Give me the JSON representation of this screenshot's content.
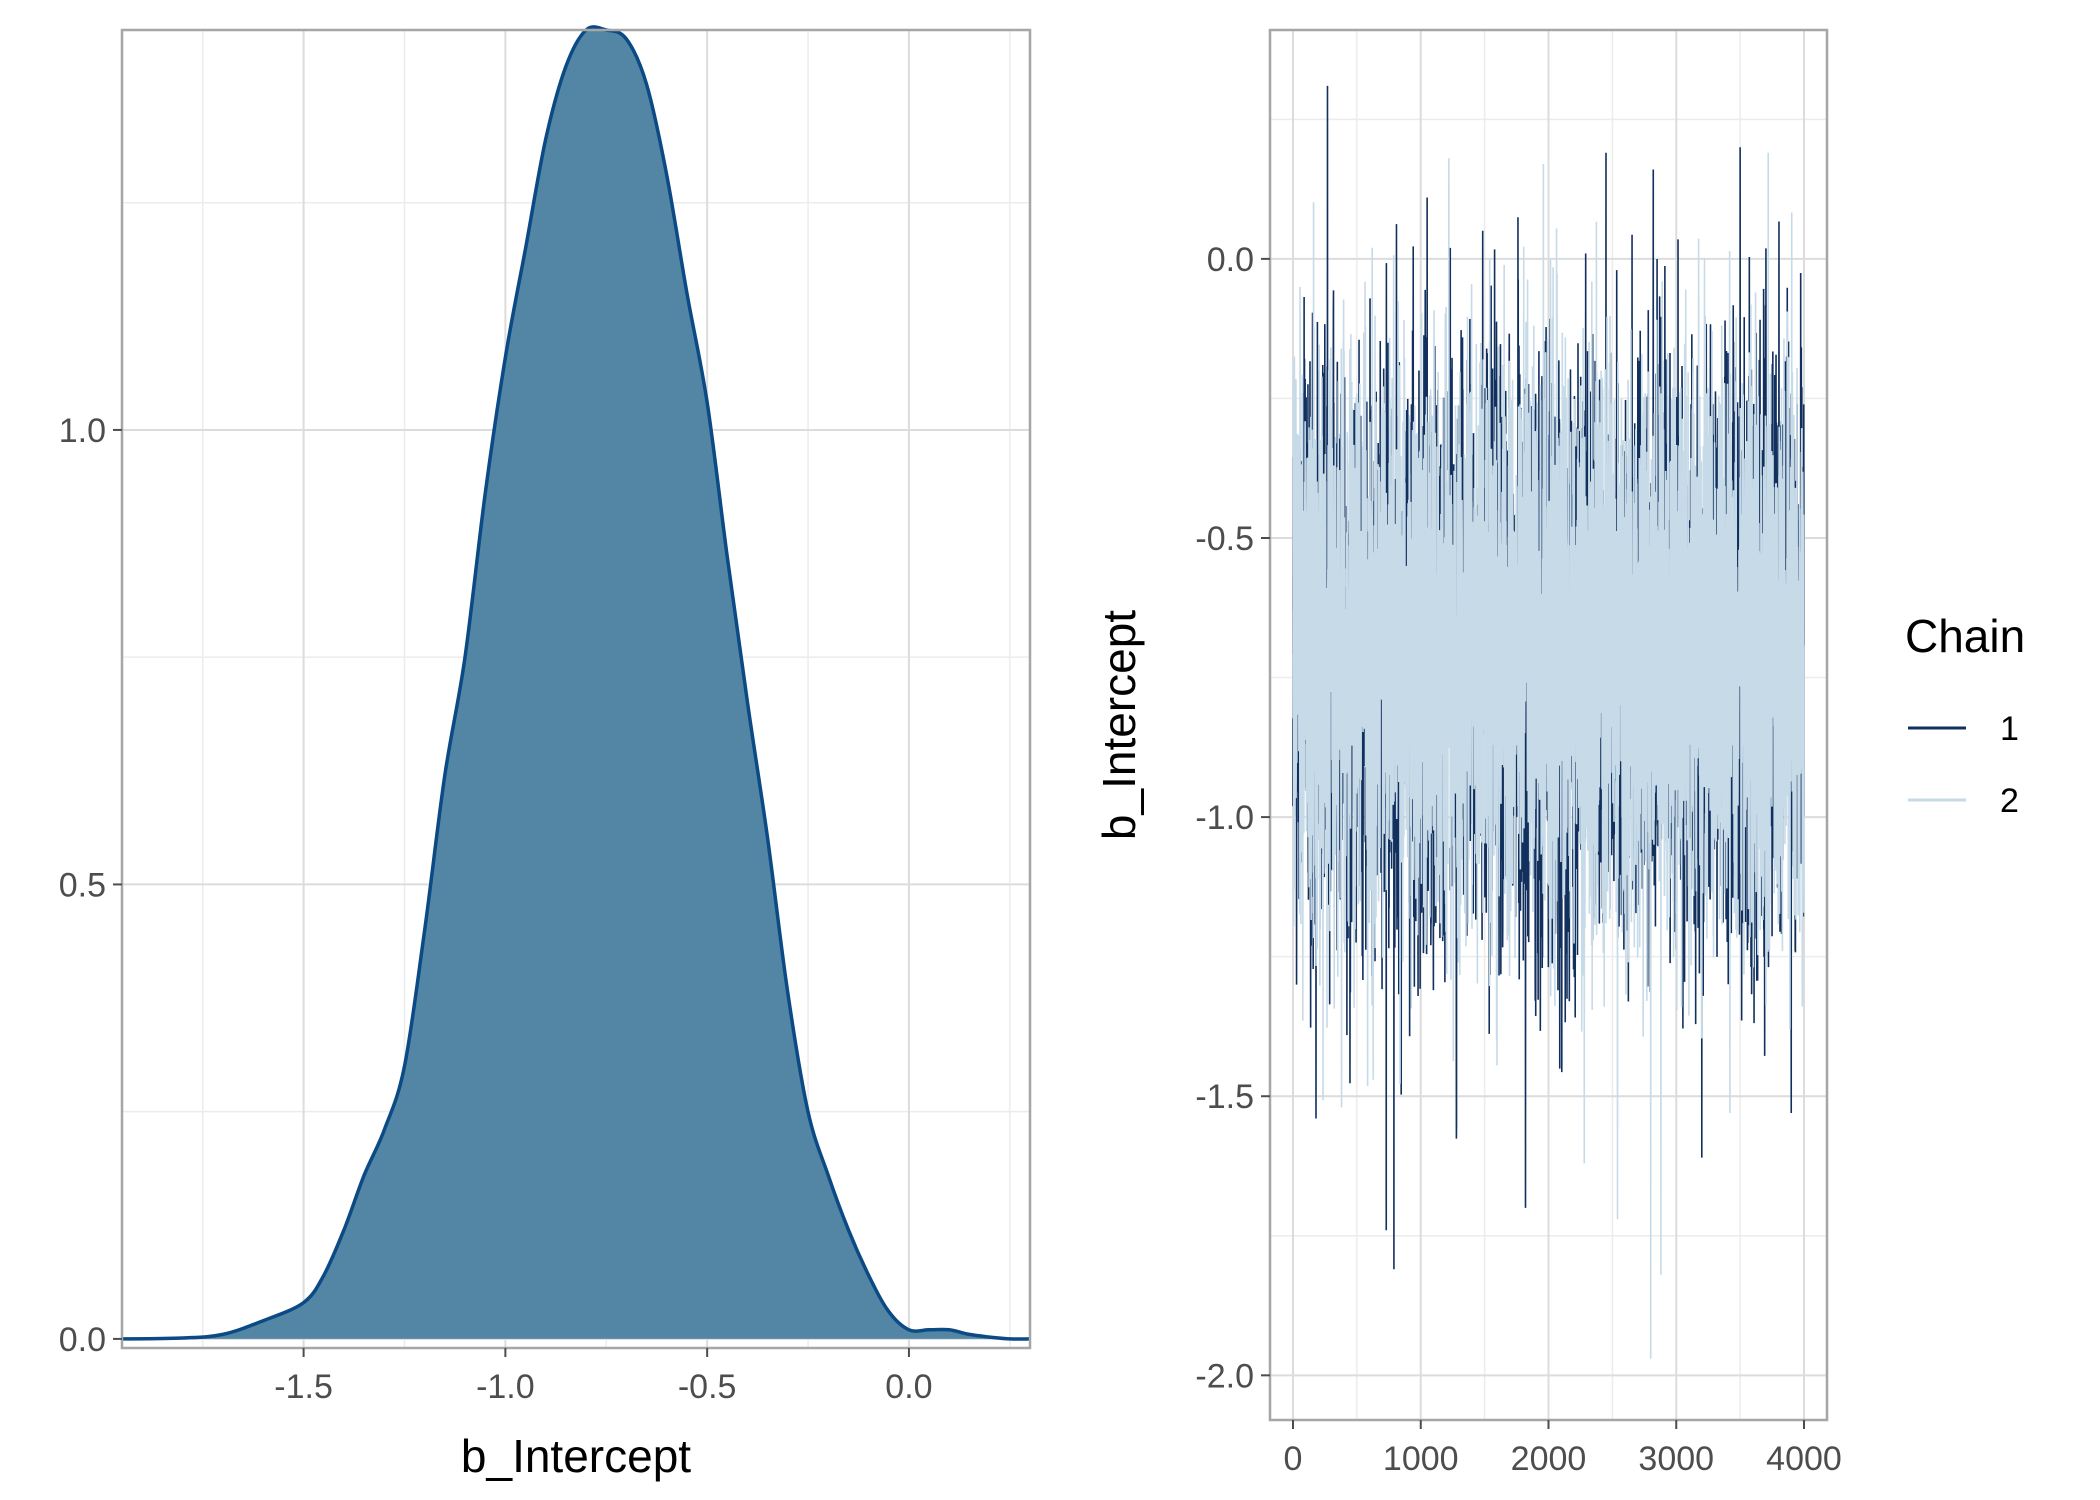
{
  "chart_data": [
    {
      "type": "area",
      "panel": "density",
      "xlabel": "b_Intercept",
      "ylabel": "",
      "xlim": [
        -1.95,
        0.3
      ],
      "ylim": [
        -0.01,
        1.44
      ],
      "x_ticks": [
        -1.5,
        -1.0,
        -0.5,
        0.0
      ],
      "x_tick_labels": [
        "-1.5",
        "-1.0",
        "-0.5",
        "0.0"
      ],
      "y_ticks": [
        0.0,
        0.5,
        1.0
      ],
      "y_tick_labels": [
        "0.0",
        "0.5",
        "1.0"
      ],
      "grid": true,
      "fill_color": "#5386a5",
      "line_color": "#0b4a84",
      "x": [
        -1.95,
        -1.8,
        -1.7,
        -1.6,
        -1.5,
        -1.45,
        -1.4,
        -1.35,
        -1.3,
        -1.25,
        -1.2,
        -1.15,
        -1.1,
        -1.05,
        -1.0,
        -0.95,
        -0.9,
        -0.85,
        -0.8,
        -0.75,
        -0.7,
        -0.65,
        -0.6,
        -0.55,
        -0.5,
        -0.45,
        -0.4,
        -0.35,
        -0.3,
        -0.25,
        -0.2,
        -0.15,
        -0.1,
        -0.05,
        0.0,
        0.05,
        0.1,
        0.15,
        0.2,
        0.25,
        0.3
      ],
      "values": [
        0.0,
        0.001,
        0.005,
        0.02,
        0.04,
        0.07,
        0.12,
        0.18,
        0.23,
        0.3,
        0.45,
        0.62,
        0.75,
        0.93,
        1.08,
        1.2,
        1.32,
        1.4,
        1.44,
        1.44,
        1.43,
        1.38,
        1.28,
        1.15,
        1.03,
        0.86,
        0.7,
        0.55,
        0.38,
        0.25,
        0.18,
        0.12,
        0.07,
        0.03,
        0.01,
        0.01,
        0.01,
        0.005,
        0.002,
        0.0,
        0.0
      ]
    },
    {
      "type": "line",
      "panel": "trace",
      "xlabel": "",
      "ylabel": "b_Intercept",
      "xlim": [
        -180,
        4180
      ],
      "ylim": [
        -2.08,
        0.41
      ],
      "x_ticks": [
        0,
        1000,
        2000,
        3000,
        4000
      ],
      "x_tick_labels": [
        "0",
        "1000",
        "2000",
        "3000",
        "4000"
      ],
      "y_ticks": [
        0.0,
        -0.5,
        -1.0,
        -1.5,
        -2.0
      ],
      "y_tick_labels": [
        "0.0",
        "-0.5",
        "-1.0",
        "-1.5",
        "-2.0"
      ],
      "grid": true,
      "legend": {
        "title": "Chain",
        "placement": "right"
      },
      "iterations": 4000,
      "center": -0.7,
      "spread_sd": 0.26,
      "series": [
        {
          "name": "1",
          "color": "#12305e",
          "min": -1.82,
          "max": 0.31,
          "extremes": [
            [
              270,
              0.31
            ],
            [
              790,
              -1.81
            ],
            [
              730,
              -1.74
            ],
            [
              1820,
              -1.7
            ],
            [
              3200,
              -1.61
            ],
            [
              1280,
              -1.55
            ],
            [
              180,
              -1.54
            ],
            [
              1050,
              0.11
            ],
            [
              2450,
              0.19
            ],
            [
              3500,
              0.2
            ],
            [
              2820,
              0.16
            ],
            [
              3900,
              -1.53
            ]
          ]
        },
        {
          "name": "2",
          "color": "#c6dae8",
          "min": -1.97,
          "max": 0.2,
          "extremes": [
            [
              2800,
              -1.97
            ],
            [
              2540,
              -1.72
            ],
            [
              2880,
              -1.82
            ],
            [
              1220,
              0.18
            ],
            [
              3720,
              0.19
            ],
            [
              1960,
              0.17
            ],
            [
              620,
              0.02
            ],
            [
              380,
              -1.52
            ],
            [
              2280,
              -1.62
            ],
            [
              3420,
              -1.53
            ]
          ]
        }
      ]
    }
  ]
}
